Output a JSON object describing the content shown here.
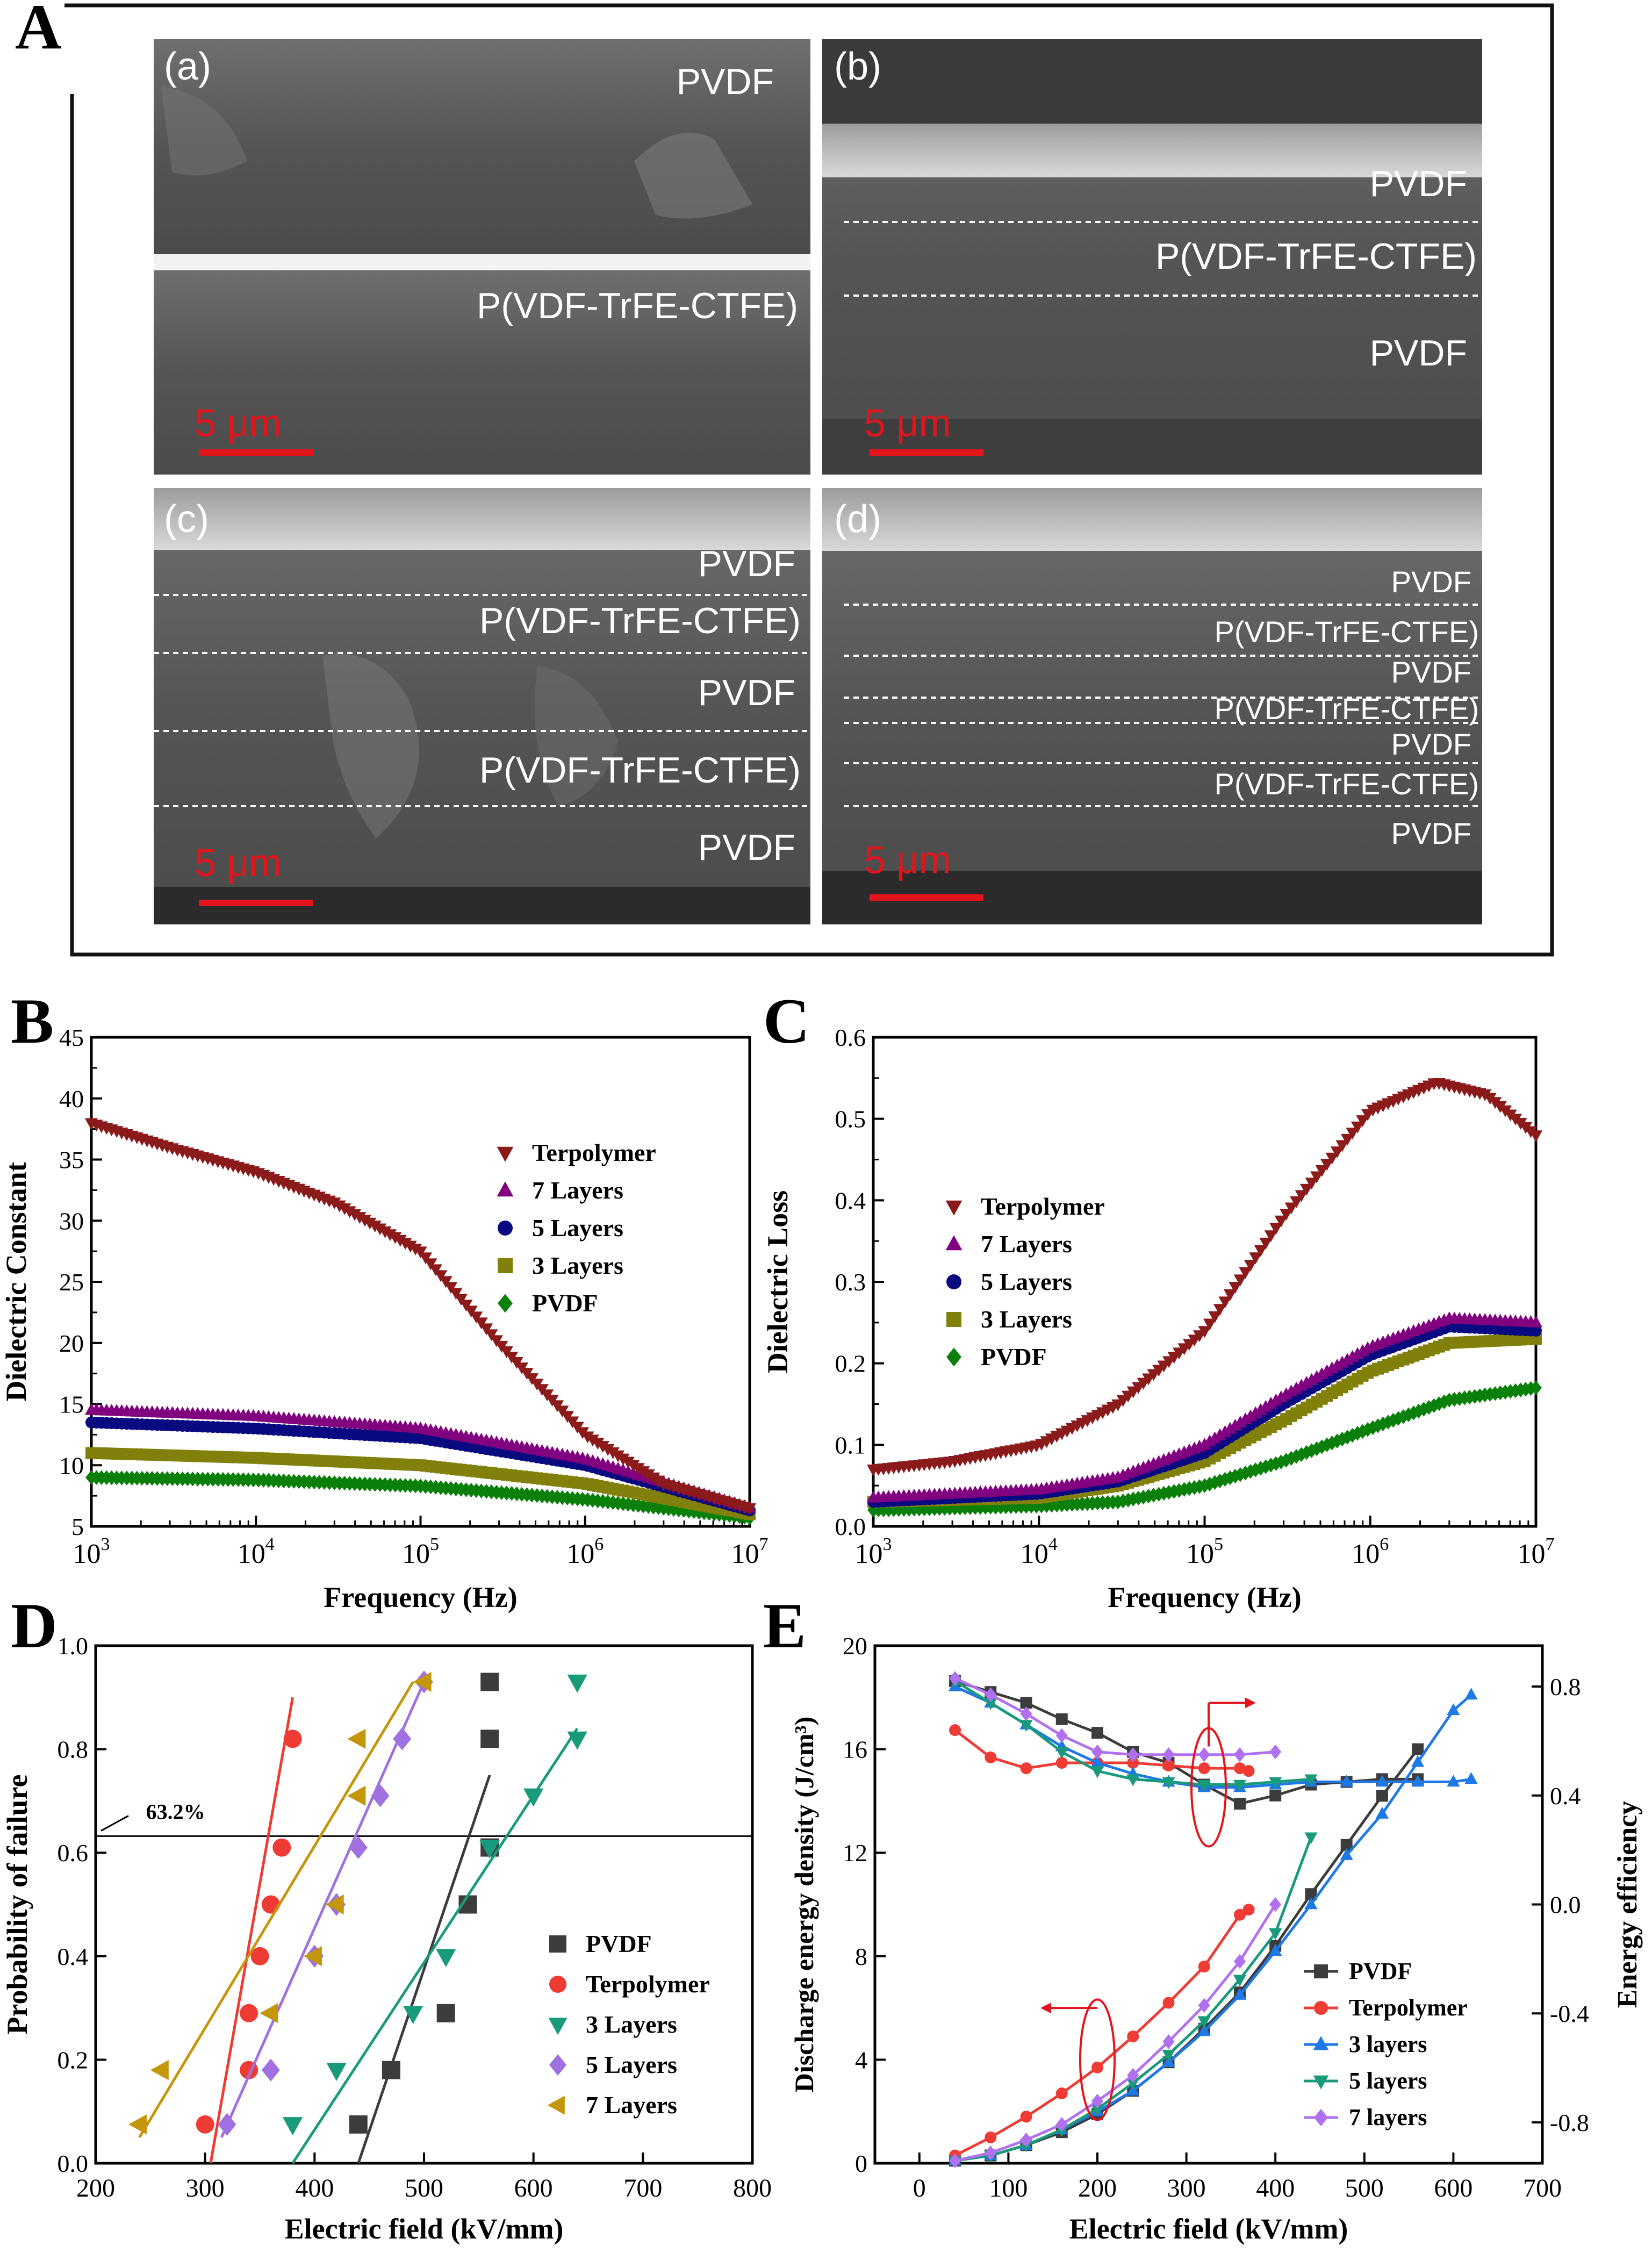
{
  "panel_letters": {
    "A": "A",
    "B": "B",
    "C": "C",
    "D": "D",
    "E": "E"
  },
  "sem": {
    "scale_bar_text": "5 μm",
    "scale_color": "#e3141b",
    "panels": [
      {
        "id": "(a)",
        "labels": [
          "PVDF",
          "P(VDF-TrFE-CTFE)"
        ]
      },
      {
        "id": "(b)",
        "labels": [
          "PVDF",
          "P(VDF-TrFE-CTFE)",
          "PVDF"
        ]
      },
      {
        "id": "(c)",
        "labels": [
          "PVDF",
          "P(VDF-TrFE-CTFE)",
          "PVDF",
          "P(VDF-TrFE-CTFE)",
          "PVDF"
        ]
      },
      {
        "id": "(d)",
        "labels": [
          "PVDF",
          "P(VDF-TrFE-CTFE)",
          "PVDF",
          "P(VDF-TrFE-CTFE)",
          "PVDF",
          "P(VDF-TrFE-CTFE)",
          "PVDF"
        ]
      }
    ]
  },
  "chart_data": [
    {
      "id": "B",
      "type": "scatter",
      "xscale": "log",
      "xlabel": "Frequency (Hz)",
      "ylabel": "Dielectric Constant",
      "xlim": [
        1000,
        10000000
      ],
      "ylim": [
        5,
        45
      ],
      "xticks": [
        {
          "value": 1000,
          "base": "10",
          "exp": "3"
        },
        {
          "value": 10000,
          "base": "10",
          "exp": "4"
        },
        {
          "value": 100000,
          "base": "10",
          "exp": "5"
        },
        {
          "value": 1000000,
          "base": "10",
          "exp": "6"
        },
        {
          "value": 10000000,
          "base": "10",
          "exp": "7"
        }
      ],
      "yticks": [
        5,
        10,
        15,
        20,
        25,
        30,
        35,
        40,
        45
      ],
      "legend_position": "right",
      "series": [
        {
          "name": "Terpolymer",
          "color": "#8b1a1a",
          "marker": "tri-down",
          "x": [
            1000,
            3000,
            10000,
            30000,
            100000,
            300000,
            1000000,
            3000000,
            10000000
          ],
          "y": [
            38,
            36,
            34,
            31.5,
            27.5,
            20,
            12.5,
            8.5,
            6.5
          ]
        },
        {
          "name": "7 Layers",
          "color": "#800080",
          "marker": "tri-up",
          "x": [
            1000,
            10000,
            100000,
            1000000,
            10000000
          ],
          "y": [
            14.5,
            14,
            13,
            10.5,
            6.5
          ]
        },
        {
          "name": "5 Layers",
          "color": "#0a0a80",
          "marker": "circle",
          "x": [
            1000,
            10000,
            100000,
            1000000,
            10000000
          ],
          "y": [
            13.5,
            13,
            12.2,
            10,
            6.3
          ]
        },
        {
          "name": "3 Layers",
          "color": "#80800a",
          "marker": "square",
          "x": [
            1000,
            10000,
            100000,
            1000000,
            10000000
          ],
          "y": [
            11,
            10.6,
            10,
            8.5,
            6
          ]
        },
        {
          "name": "PVDF",
          "color": "#0a800a",
          "marker": "diamond",
          "x": [
            1000,
            10000,
            100000,
            1000000,
            10000000
          ],
          "y": [
            9,
            8.8,
            8.3,
            7.2,
            5.7
          ]
        }
      ]
    },
    {
      "id": "C",
      "type": "scatter",
      "xscale": "log",
      "xlabel": "Frequency (Hz)",
      "ylabel": "Dielectric Loss",
      "xlim": [
        1000,
        10000000
      ],
      "ylim": [
        0,
        0.6
      ],
      "xticks": [
        {
          "value": 1000,
          "base": "10",
          "exp": "3"
        },
        {
          "value": 10000,
          "base": "10",
          "exp": "4"
        },
        {
          "value": 100000,
          "base": "10",
          "exp": "5"
        },
        {
          "value": 1000000,
          "base": "10",
          "exp": "6"
        },
        {
          "value": 10000000,
          "base": "10",
          "exp": "7"
        }
      ],
      "yticks": [
        "0.0",
        "0.1",
        "0.2",
        "0.3",
        "0.4",
        "0.5",
        "0.6"
      ],
      "legend_position": "left",
      "series": [
        {
          "name": "Terpolymer",
          "color": "#8b1a1a",
          "marker": "tri-down",
          "x": [
            1000,
            3000,
            10000,
            30000,
            100000,
            300000,
            1000000,
            2500000,
            5000000,
            10000000
          ],
          "y": [
            0.07,
            0.08,
            0.1,
            0.15,
            0.24,
            0.38,
            0.51,
            0.545,
            0.53,
            0.48
          ]
        },
        {
          "name": "7 Layers",
          "color": "#800080",
          "marker": "tri-up",
          "x": [
            1000,
            10000,
            30000,
            100000,
            300000,
            1000000,
            3000000,
            10000000
          ],
          "y": [
            0.035,
            0.045,
            0.06,
            0.1,
            0.16,
            0.22,
            0.255,
            0.25
          ]
        },
        {
          "name": "5 Layers",
          "color": "#0a0a80",
          "marker": "circle",
          "x": [
            1000,
            10000,
            30000,
            100000,
            300000,
            1000000,
            3000000,
            10000000
          ],
          "y": [
            0.03,
            0.04,
            0.055,
            0.09,
            0.15,
            0.21,
            0.245,
            0.24
          ]
        },
        {
          "name": "3 Layers",
          "color": "#80800a",
          "marker": "square",
          "x": [
            1000,
            10000,
            30000,
            100000,
            300000,
            1000000,
            3000000,
            10000000
          ],
          "y": [
            0.03,
            0.035,
            0.05,
            0.08,
            0.13,
            0.19,
            0.225,
            0.23
          ]
        },
        {
          "name": "PVDF",
          "color": "#0a800a",
          "marker": "diamond",
          "x": [
            1000,
            10000,
            30000,
            100000,
            300000,
            1000000,
            3000000,
            10000000
          ],
          "y": [
            0.02,
            0.025,
            0.03,
            0.05,
            0.08,
            0.12,
            0.155,
            0.17
          ]
        }
      ]
    },
    {
      "id": "D",
      "type": "scatter",
      "xlabel": "Electric field (kV/mm)",
      "ylabel": "Probability of failure",
      "xlim": [
        200,
        800
      ],
      "ylim": [
        0,
        1
      ],
      "xticks": [
        200,
        300,
        400,
        500,
        600,
        700,
        800
      ],
      "yticks": [
        "0.0",
        "0.2",
        "0.4",
        "0.6",
        "0.8",
        "1.0"
      ],
      "reference_line": {
        "y": 0.632,
        "label": "63.2%"
      },
      "legend_position": "bottom-right",
      "series": [
        {
          "name": "PVDF",
          "color": "#3c3c3c",
          "marker": "square",
          "x": [
            440,
            470,
            520,
            540,
            560,
            560,
            560
          ],
          "y": [
            0.075,
            0.18,
            0.29,
            0.5,
            0.61,
            0.82,
            0.93
          ],
          "fit": [
            [
              440,
              0
            ],
            [
              560,
              0.75
            ]
          ]
        },
        {
          "name": "Terpolymer",
          "color": "#ee3b34",
          "marker": "circle",
          "x": [
            300,
            340,
            340,
            350,
            360,
            370,
            380
          ],
          "y": [
            0.075,
            0.18,
            0.29,
            0.4,
            0.5,
            0.61,
            0.82
          ],
          "fit": [
            [
              305,
              0
            ],
            [
              380,
              0.9
            ]
          ]
        },
        {
          "name": "3 Layers",
          "color": "#199b7b",
          "marker": "tri-down",
          "x": [
            380,
            420,
            490,
            520,
            560,
            600,
            640,
            640
          ],
          "y": [
            0.075,
            0.18,
            0.29,
            0.4,
            0.61,
            0.71,
            0.82,
            0.93
          ],
          "fit": [
            [
              380,
              0
            ],
            [
              640,
              0.84
            ]
          ]
        },
        {
          "name": "5 Layers",
          "color": "#a070e0",
          "marker": "diamond",
          "x": [
            320,
            360,
            400,
            420,
            440,
            460,
            480,
            500
          ],
          "y": [
            0.075,
            0.18,
            0.4,
            0.5,
            0.61,
            0.71,
            0.82,
            0.93
          ],
          "fit": [
            [
              315,
              0.05
            ],
            [
              500,
              0.93
            ]
          ]
        },
        {
          "name": "7 Layers",
          "color": "#c4960a",
          "marker": "tri-left",
          "x": [
            240,
            260,
            360,
            400,
            420,
            440,
            440,
            500
          ],
          "y": [
            0.075,
            0.18,
            0.29,
            0.4,
            0.5,
            0.71,
            0.82,
            0.93
          ],
          "fit": [
            [
              240,
              0.05
            ],
            [
              490,
              0.93
            ]
          ]
        }
      ]
    },
    {
      "id": "E",
      "type": "line",
      "xlabel": "Electric field (kV/mm)",
      "ylabel_left": "Discharge energy density (J/cm³)",
      "ylabel_right": "Energy efficiency",
      "xlim": [
        -50,
        700
      ],
      "ylim_left": [
        0,
        20
      ],
      "ylim_right": [
        -0.95,
        0.95
      ],
      "xticks": [
        0,
        100,
        200,
        300,
        400,
        500,
        600,
        700
      ],
      "yticks_left": [
        0,
        4,
        8,
        12,
        16,
        20
      ],
      "yticks_right": [
        "-0.8",
        "-0.4",
        "0.0",
        "0.4",
        "0.8"
      ],
      "legend_position": "bottom-right",
      "series": [
        {
          "name": "PVDF",
          "color": "#3c3c3c",
          "marker": "square",
          "x": [
            40,
            80,
            120,
            160,
            200,
            240,
            280,
            320,
            360,
            400,
            440,
            480,
            520,
            560
          ],
          "energy": [
            0.1,
            0.3,
            0.7,
            1.2,
            1.9,
            2.8,
            3.9,
            5.2,
            6.6,
            8.4,
            10.4,
            12.3,
            14.2,
            16.0
          ],
          "efficiency": [
            0.82,
            0.78,
            0.74,
            0.68,
            0.63,
            0.56,
            0.52,
            0.44,
            0.37,
            0.4,
            0.44,
            0.45,
            0.46,
            0.46
          ]
        },
        {
          "name": "Terpolymer",
          "color": "#ee3b34",
          "marker": "circle",
          "x": [
            40,
            80,
            120,
            160,
            200,
            240,
            280,
            320,
            360,
            370
          ],
          "energy": [
            0.3,
            1.0,
            1.8,
            2.7,
            3.7,
            4.9,
            6.2,
            7.6,
            9.6,
            9.8
          ],
          "efficiency": [
            0.64,
            0.54,
            0.5,
            0.52,
            0.52,
            0.52,
            0.51,
            0.5,
            0.5,
            0.49
          ]
        },
        {
          "name": "3 layers",
          "color": "#1e78e6",
          "marker": "tri-up",
          "x": [
            40,
            80,
            120,
            160,
            200,
            240,
            280,
            320,
            360,
            400,
            440,
            480,
            520,
            560,
            600,
            620
          ],
          "energy": [
            0.1,
            0.3,
            0.7,
            1.3,
            2.0,
            2.8,
            3.9,
            5.1,
            6.5,
            8.2,
            10.0,
            11.9,
            13.5,
            15.5,
            17.5,
            18.1
          ],
          "efficiency": [
            0.8,
            0.74,
            0.66,
            0.58,
            0.52,
            0.48,
            0.45,
            0.43,
            0.43,
            0.44,
            0.45,
            0.45,
            0.45,
            0.45,
            0.45,
            0.46
          ]
        },
        {
          "name": "5 layers",
          "color": "#199b7b",
          "marker": "tri-down",
          "x": [
            40,
            80,
            120,
            160,
            200,
            240,
            280,
            320,
            360,
            400,
            440
          ],
          "energy": [
            0.1,
            0.3,
            0.7,
            1.3,
            2.1,
            3.1,
            4.2,
            5.5,
            7.1,
            8.9,
            12.6
          ],
          "efficiency": [
            0.82,
            0.74,
            0.66,
            0.56,
            0.49,
            0.46,
            0.45,
            0.44,
            0.44,
            0.45,
            0.46
          ]
        },
        {
          "name": "7 layers",
          "color": "#b070f0",
          "marker": "diamond",
          "x": [
            40,
            80,
            120,
            160,
            200,
            240,
            280,
            320,
            360,
            400
          ],
          "energy": [
            0.1,
            0.4,
            0.9,
            1.5,
            2.4,
            3.4,
            4.7,
            6.1,
            7.8,
            10.0
          ],
          "efficiency": [
            0.83,
            0.77,
            0.7,
            0.62,
            0.56,
            0.55,
            0.55,
            0.55,
            0.55,
            0.56
          ]
        }
      ]
    }
  ]
}
